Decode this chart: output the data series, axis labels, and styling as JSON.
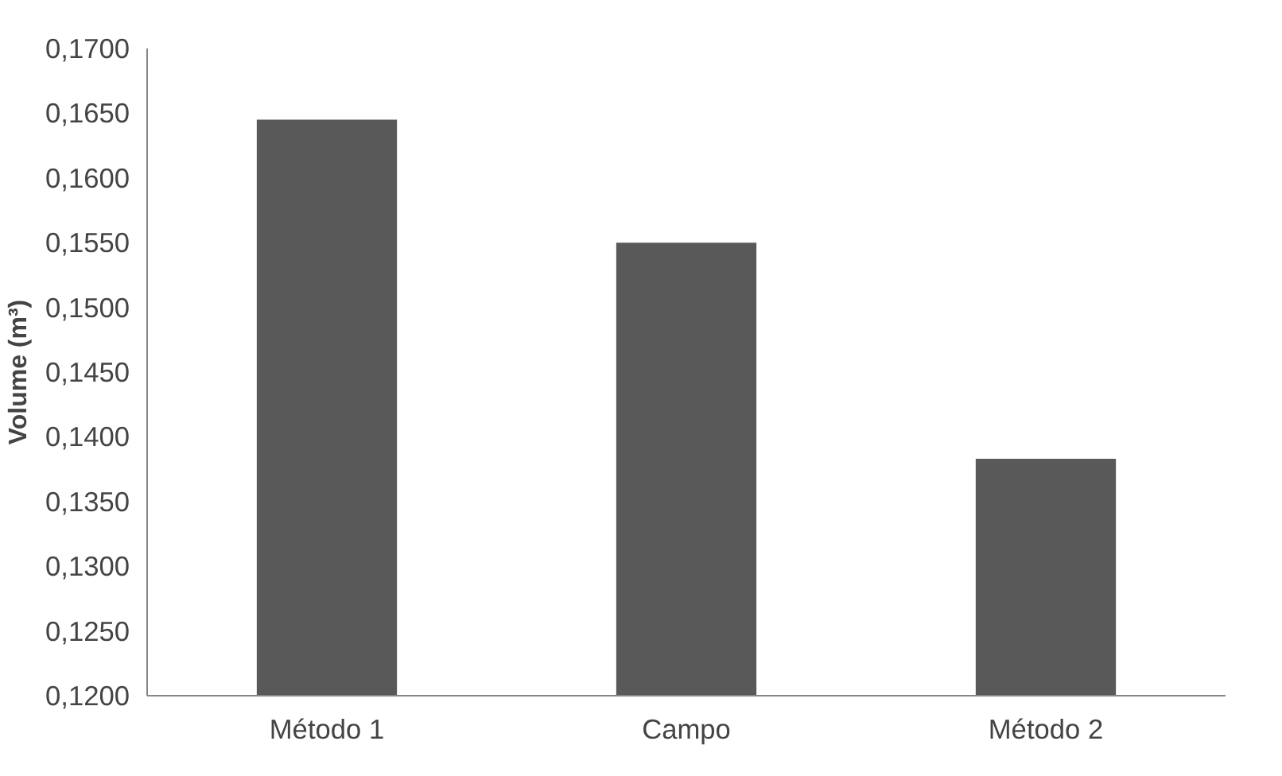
{
  "chart_data": {
    "type": "bar",
    "ylabel": "Volume (m³)",
    "categories": [
      "Método 1",
      "Campo",
      "Método 2"
    ],
    "values": [
      0.1645,
      0.155,
      0.1383
    ],
    "color": "#595959",
    "ylim": [
      0.12,
      0.17
    ],
    "yticks": [
      {
        "value": 0.12,
        "label": "0,1200"
      },
      {
        "value": 0.125,
        "label": "0,1250"
      },
      {
        "value": 0.13,
        "label": "0,1300"
      },
      {
        "value": 0.135,
        "label": "0,1350"
      },
      {
        "value": 0.14,
        "label": "0,1400"
      },
      {
        "value": 0.145,
        "label": "0,1450"
      },
      {
        "value": 0.15,
        "label": "0,1500"
      },
      {
        "value": 0.155,
        "label": "0,1550"
      },
      {
        "value": 0.16,
        "label": "0,1600"
      },
      {
        "value": 0.165,
        "label": "0,1650"
      },
      {
        "value": 0.17,
        "label": "0,1700"
      }
    ],
    "grid": false
  }
}
